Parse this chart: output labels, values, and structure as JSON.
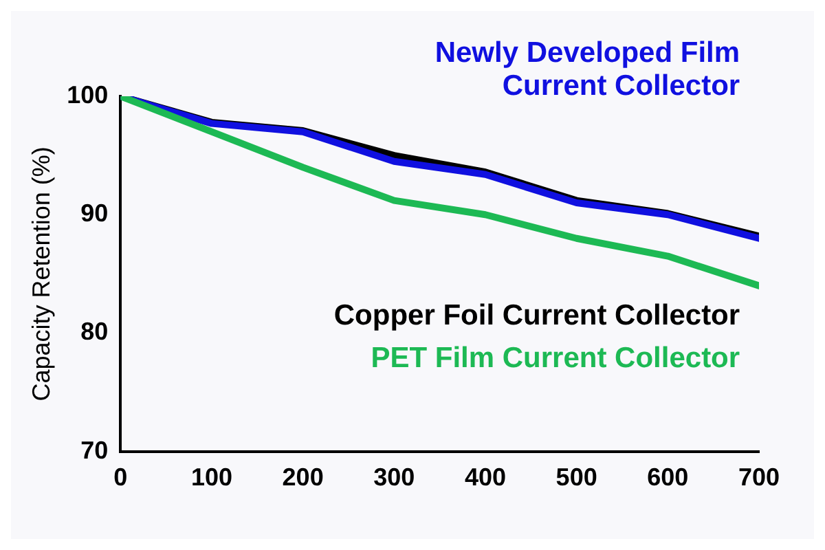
{
  "chart_data": {
    "type": "line",
    "ylabel": "Capacity Retention (%)",
    "x": [
      0,
      100,
      200,
      300,
      400,
      500,
      600,
      700
    ],
    "xlim": [
      0,
      700
    ],
    "xticks": [
      0,
      100,
      200,
      300,
      400,
      500,
      600,
      700
    ],
    "ylim": [
      70,
      100
    ],
    "yticks": [
      70,
      80,
      90,
      100
    ],
    "grid": false,
    "legend": false,
    "marker": "none",
    "line_style": "solid",
    "series": [
      {
        "name": "Copper Foil Current Collector",
        "color": "#000000",
        "values": [
          100,
          97.8,
          97.1,
          95,
          93.6,
          91.2,
          90.1,
          88.2
        ]
      },
      {
        "name": "Newly Developed Film Current Collector",
        "color": "#1010e0",
        "values": [
          100,
          97.7,
          97,
          94.5,
          93.4,
          91,
          90,
          88
        ]
      },
      {
        "name": "PET Film Current Collector",
        "color": "#1db954",
        "values": [
          100,
          97,
          94,
          91.2,
          90,
          88,
          86.5,
          84
        ]
      }
    ]
  }
}
